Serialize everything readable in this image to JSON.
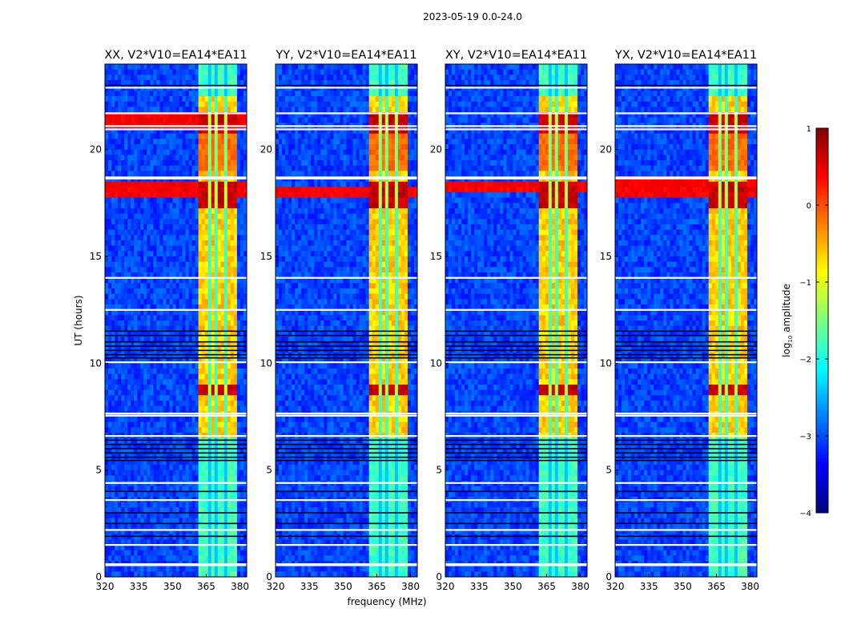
{
  "suptitle": "2023-05-19 0.0-24.0",
  "chart_data": {
    "type": "heatmap",
    "title": "2023-05-19 0.0-24.0",
    "xlabel": "frequency (MHz)",
    "ylabel": "UT (hours)",
    "xlim": [
      320,
      383
    ],
    "ylim": [
      0,
      24
    ],
    "xticks": [
      320,
      335,
      350,
      365,
      380
    ],
    "yticks": [
      0,
      5,
      10,
      15,
      20
    ],
    "colormap": "jet",
    "colorbar": {
      "label": "log10 amplitude",
      "label_main": "log",
      "label_sub": "10",
      "label_rest": " amplitude",
      "range": [
        -4,
        1
      ],
      "ticks": [
        1,
        0,
        -1,
        -2,
        -3,
        -4
      ],
      "tick_labels": [
        "1",
        "0",
        "−1",
        "−2",
        "−3",
        "−4"
      ]
    },
    "panels": [
      {
        "title": "XX, V2*V10=EA14*EA11",
        "polarization": "XX",
        "strong_rfi_bands_hours": [
          [
            21.2,
            21.5
          ],
          [
            17.8,
            18.4
          ]
        ]
      },
      {
        "title": "YY, V2*V10=EA14*EA11",
        "polarization": "YY",
        "strong_rfi_bands_hours": [
          [
            18.0,
            18.2
          ]
        ]
      },
      {
        "title": "XY, V2*V10=EA14*EA11",
        "polarization": "XY",
        "strong_rfi_bands_hours": [
          [
            18.2,
            18.4
          ]
        ]
      },
      {
        "title": "YX, V2*V10=EA14*EA11",
        "polarization": "YX",
        "strong_rfi_bands_hours": [
          [
            18.0,
            18.5
          ]
        ]
      }
    ],
    "signal_band_mhz": [
      362,
      379
    ],
    "subband_gaps_mhz": [
      366,
      370,
      374
    ],
    "blank_rows_hours": [
      22.9,
      21.7,
      21.1,
      20.95,
      18.7,
      18.65,
      14.0,
      12.5,
      10.05,
      7.65,
      7.55,
      6.6,
      4.4,
      3.6,
      2.2,
      1.5,
      0.6,
      0.55
    ],
    "dark_rows_hours": [
      23.0,
      11.5,
      11.3,
      11.0,
      10.8,
      10.6,
      10.4,
      10.25,
      6.4,
      6.2,
      6.0,
      5.8,
      5.6,
      5.45,
      4.0,
      3.0,
      2.5,
      1.9
    ]
  }
}
